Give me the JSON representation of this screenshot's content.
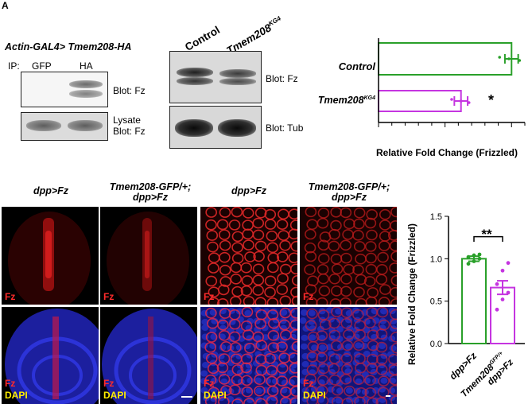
{
  "panel_a": {
    "letter": "A",
    "title_prefix": "Actin-GAL4> ",
    "title_construct": "Tmem208-HA",
    "ip_label": "IP:",
    "lanes": [
      "GFP",
      "HA"
    ],
    "blot_top_label": "Blot: Fz",
    "blot_bottom_label_1": "Lysate",
    "blot_bottom_label_2": "Blot: Fz"
  },
  "panel_b": {
    "lanes": [
      "Control",
      "Tmem208",
      "KG4"
    ],
    "blot_top_label": "Blot: Fz",
    "blot_bottom_label": "Blot: Tub"
  },
  "chart_top": {
    "categories": [
      "Control",
      "Tmem208"
    ],
    "category_superscripts": [
      "",
      "KG4"
    ],
    "xlabel": "Relative Fold Change (Frizzled)",
    "significance": "*",
    "colors": {
      "control": "#2aa02a",
      "mutant": "#c535e0"
    }
  },
  "panel_c": {
    "headers": [
      {
        "line1": "dpp>Fz",
        "line2": ""
      },
      {
        "line1": "Tmem208-GFP/+;",
        "line2": "dpp>Fz"
      },
      {
        "line1": "dpp>Fz",
        "line2": ""
      },
      {
        "line1": "Tmem208-GFP/+;",
        "line2": "dpp>Fz"
      }
    ],
    "fz_label": "Fz",
    "dapi_label": "DAPI"
  },
  "chart_bottom": {
    "ylabel": "Relative Fold Change (Frizzled)",
    "significance": "**",
    "tick_labels": [
      "0.0",
      "0.5",
      "1.0",
      "1.5"
    ],
    "cat1": "dpp>Fz",
    "cat2_prefix": "Tmem208",
    "cat2_sup": "GFP/+",
    "cat2_line2": "dpp>Fz"
  },
  "chart_data": [
    {
      "type": "bar",
      "orientation": "horizontal",
      "categories": [
        "Control",
        "Tmem208 KG4"
      ],
      "values": [
        1.0,
        0.62
      ],
      "error": [
        0.05,
        0.05
      ],
      "points": [
        [
          0.91,
          0.98,
          1.06
        ],
        [
          0.55,
          0.62,
          0.68
        ]
      ],
      "xlabel": "Relative Fold Change (Frizzled)",
      "xlim": [
        0,
        1.1
      ],
      "annotation": "*"
    },
    {
      "type": "bar",
      "categories": [
        "dpp>Fz",
        "Tmem208 GFP/+ dpp>Fz"
      ],
      "values": [
        1.0,
        0.66
      ],
      "error": [
        0.03,
        0.08
      ],
      "points": [
        [
          0.94,
          0.97,
          1.0,
          1.02,
          1.04,
          1.05
        ],
        [
          0.4,
          0.52,
          0.6,
          0.7,
          0.86,
          0.95
        ]
      ],
      "ylabel": "Relative Fold Change (Frizzled)",
      "ylim": [
        0,
        1.5
      ],
      "annotation": "**"
    }
  ]
}
